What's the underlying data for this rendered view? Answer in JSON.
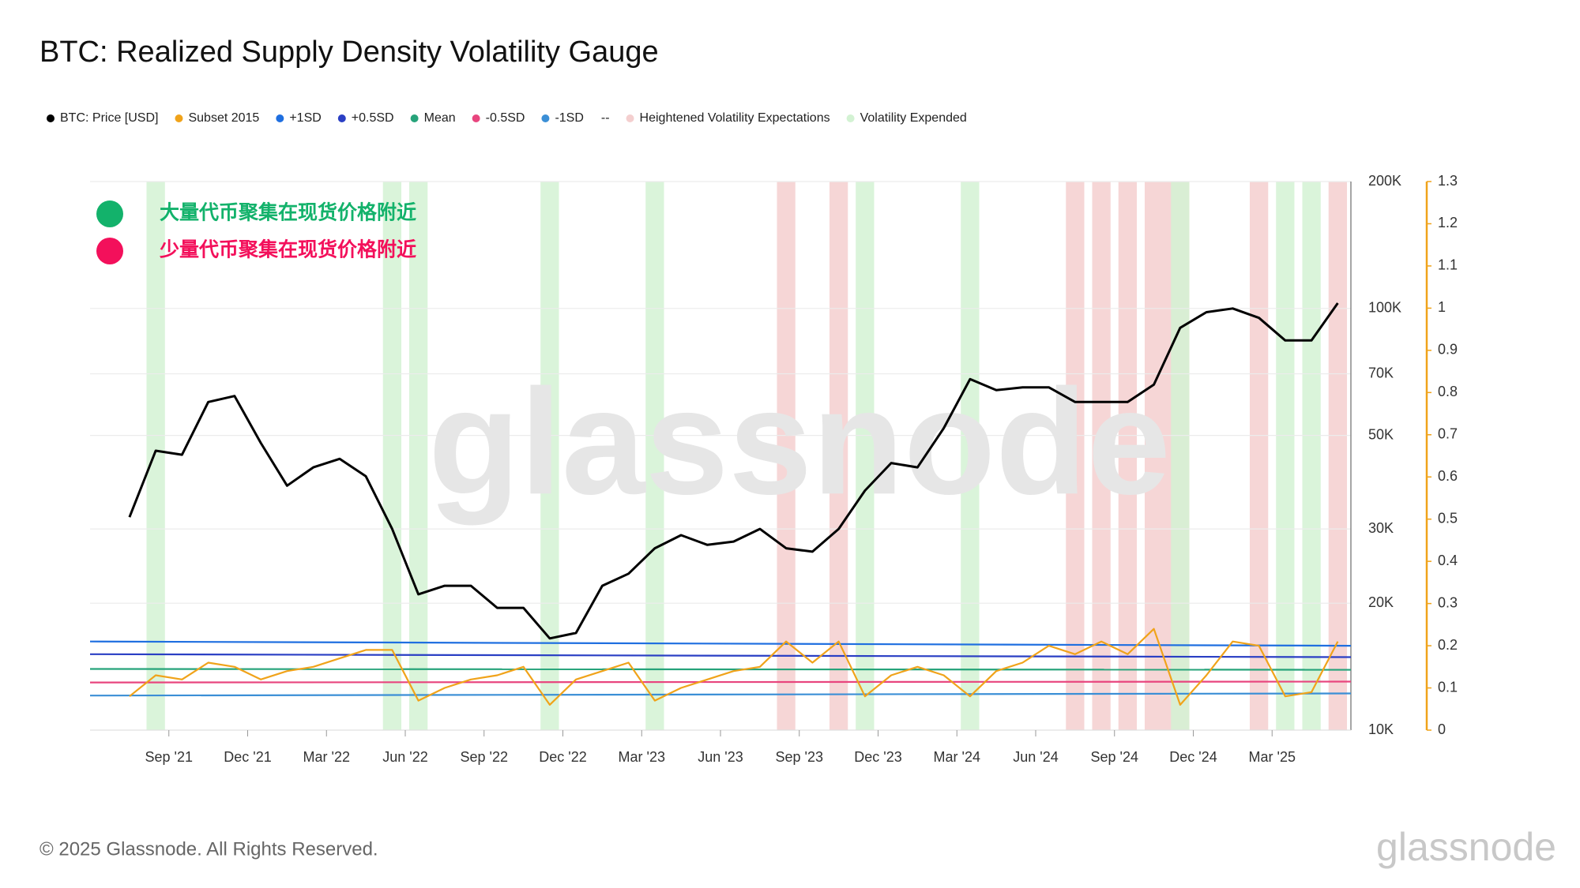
{
  "chart_data": {
    "type": "line",
    "title": "BTC: Realized Supply Density Volatility Gauge",
    "legend_dash": "--",
    "annotations": [
      {
        "text": "大量代币聚集在现货价格附近",
        "color": "#13b26b"
      },
      {
        "text": "少量代币聚集在现货价格附近",
        "color": "#f3105b"
      }
    ],
    "watermark": "glassnode",
    "footer": "© 2025 Glassnode. All Rights Reserved.",
    "logo": "glassnode",
    "x": [
      "2021-07",
      "2021-08",
      "2021-09",
      "2021-10",
      "2021-11",
      "2021-12",
      "2022-01",
      "2022-02",
      "2022-03",
      "2022-04",
      "2022-05",
      "2022-06",
      "2022-07",
      "2022-08",
      "2022-09",
      "2022-10",
      "2022-11",
      "2022-12",
      "2023-01",
      "2023-02",
      "2023-03",
      "2023-04",
      "2023-05",
      "2023-06",
      "2023-07",
      "2023-08",
      "2023-09",
      "2023-10",
      "2023-11",
      "2023-12",
      "2024-01",
      "2024-02",
      "2024-03",
      "2024-04",
      "2024-05",
      "2024-06",
      "2024-07",
      "2024-08",
      "2024-09",
      "2024-10",
      "2024-11",
      "2024-12",
      "2025-01",
      "2025-02",
      "2025-03",
      "2025-04",
      "2025-05"
    ],
    "xlim": [
      "2021-06",
      "2025-06"
    ],
    "xticks": [
      {
        "value": "2021-09",
        "label": "Sep '21"
      },
      {
        "value": "2021-12",
        "label": "Dec '21"
      },
      {
        "value": "2022-03",
        "label": "Mar '22"
      },
      {
        "value": "2022-06",
        "label": "Jun '22"
      },
      {
        "value": "2022-09",
        "label": "Sep '22"
      },
      {
        "value": "2022-12",
        "label": "Dec '22"
      },
      {
        "value": "2023-03",
        "label": "Mar '23"
      },
      {
        "value": "2023-06",
        "label": "Jun '23"
      },
      {
        "value": "2023-09",
        "label": "Sep '23"
      },
      {
        "value": "2023-12",
        "label": "Dec '23"
      },
      {
        "value": "2024-03",
        "label": "Mar '24"
      },
      {
        "value": "2024-06",
        "label": "Jun '24"
      },
      {
        "value": "2024-09",
        "label": "Sep '24"
      },
      {
        "value": "2024-12",
        "label": "Dec '24"
      },
      {
        "value": "2025-03",
        "label": "Mar '25"
      }
    ],
    "log_scale": true,
    "grid": true,
    "ylim": [
      10000,
      200000
    ],
    "yticks": [
      {
        "value": 10000,
        "label": "10K"
      },
      {
        "value": 20000,
        "label": "20K"
      },
      {
        "value": 30000,
        "label": "30K"
      },
      {
        "value": 50000,
        "label": "50K"
      },
      {
        "value": 70000,
        "label": "70K"
      },
      {
        "value": 100000,
        "label": "100K"
      },
      {
        "value": 200000,
        "label": "200K"
      }
    ],
    "y2lim": [
      0,
      1.3
    ],
    "y2ticks": [
      0,
      0.1,
      0.2,
      0.3,
      0.4,
      0.5,
      0.6,
      0.7,
      0.8,
      0.9,
      1,
      1.1,
      1.2,
      1.3
    ],
    "series": [
      {
        "name": "BTC: Price [USD]",
        "color": "#000000",
        "values": [
          32000,
          46000,
          45000,
          60000,
          62000,
          48000,
          38000,
          42000,
          44000,
          40000,
          30000,
          21000,
          22000,
          22000,
          19500,
          19500,
          16500,
          17000,
          22000,
          23500,
          27000,
          29000,
          27500,
          28000,
          30000,
          27000,
          26500,
          30000,
          37000,
          43000,
          42000,
          52000,
          68000,
          64000,
          65000,
          65000,
          60000,
          60000,
          60000,
          66000,
          90000,
          98000,
          100000,
          95000,
          84000,
          84000,
          103000
        ]
      },
      {
        "name": "Subset 2015",
        "color": "#f0a31a",
        "axis": "y2",
        "values": [
          0.08,
          0.13,
          0.12,
          0.16,
          0.15,
          0.12,
          0.14,
          0.15,
          0.17,
          0.19,
          0.19,
          0.07,
          0.1,
          0.12,
          0.13,
          0.15,
          0.06,
          0.12,
          0.14,
          0.16,
          0.07,
          0.1,
          0.12,
          0.14,
          0.15,
          0.21,
          0.16,
          0.21,
          0.08,
          0.13,
          0.15,
          0.13,
          0.08,
          0.14,
          0.16,
          0.2,
          0.18,
          0.21,
          0.18,
          0.24,
          0.06,
          0.13,
          0.21,
          0.2,
          0.08,
          0.09,
          0.21
        ]
      },
      {
        "name": "+1SD",
        "color": "#1f6fe0",
        "axis": "y2",
        "x": [
          "2021-06",
          "2025-05"
        ],
        "values": [
          0.21,
          0.2
        ]
      },
      {
        "name": "+0.5SD",
        "color": "#2a3fc4",
        "axis": "y2",
        "x": [
          "2021-06",
          "2025-05"
        ],
        "values": [
          0.18,
          0.173
        ]
      },
      {
        "name": "Mean",
        "color": "#26a37a",
        "axis": "y2",
        "x": [
          "2021-06",
          "2025-05"
        ],
        "values": [
          0.145,
          0.143
        ]
      },
      {
        "name": "-0.5SD",
        "color": "#e8457e",
        "axis": "y2",
        "x": [
          "2021-06",
          "2025-05"
        ],
        "values": [
          0.113,
          0.115
        ]
      },
      {
        "name": "-1SD",
        "color": "#3b8fd6",
        "axis": "y2",
        "x": [
          "2021-06",
          "2025-05"
        ],
        "values": [
          0.082,
          0.087
        ]
      }
    ],
    "bands": [
      {
        "name": "Heightened Volatility Expectations",
        "color": "#f4cfcf",
        "periods": [
          [
            "2023-08",
            "2023-08"
          ],
          [
            "2023-10",
            "2023-10"
          ],
          [
            "2024-07",
            "2024-07"
          ],
          [
            "2024-08",
            "2024-08"
          ],
          [
            "2024-09",
            "2024-09"
          ],
          [
            "2024-10",
            "2024-11"
          ],
          [
            "2025-02",
            "2025-02"
          ],
          [
            "2025-05",
            "2025-05"
          ]
        ]
      },
      {
        "name": "Volatility Expended",
        "color": "#d3f2d3",
        "periods": [
          [
            "2021-08",
            "2021-08"
          ],
          [
            "2022-05",
            "2022-05"
          ],
          [
            "2022-06",
            "2022-06"
          ],
          [
            "2022-11",
            "2022-11"
          ],
          [
            "2023-03",
            "2023-03"
          ],
          [
            "2023-11",
            "2023-11"
          ],
          [
            "2024-03",
            "2024-03"
          ],
          [
            "2024-11",
            "2024-11"
          ],
          [
            "2025-03",
            "2025-03"
          ],
          [
            "2025-04",
            "2025-04"
          ]
        ]
      }
    ]
  }
}
